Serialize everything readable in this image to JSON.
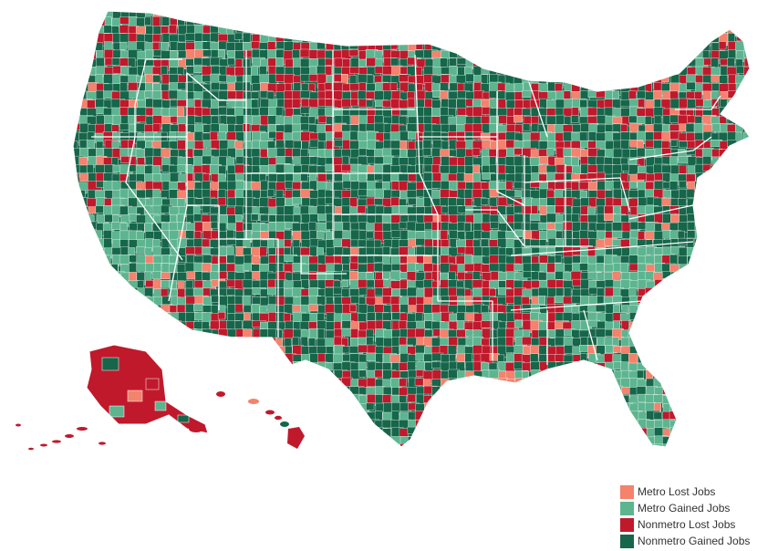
{
  "colors": {
    "metro_lost": "#f4826c",
    "metro_gained": "#5db590",
    "nonmetro_lost": "#c0192b",
    "nonmetro_gained": "#16664a",
    "border": "#ffffff"
  },
  "map": {
    "regions": [
      "contiguous-us",
      "alaska",
      "hawaii"
    ],
    "unit": "county"
  },
  "legend": {
    "items": [
      {
        "key": "metro_lost",
        "label": "Metro Lost Jobs"
      },
      {
        "key": "metro_gained",
        "label": "Metro Gained Jobs"
      },
      {
        "key": "nonmetro_lost",
        "label": "Nonmetro Lost Jobs"
      },
      {
        "key": "nonmetro_gained",
        "label": "Nonmetro Gained Jobs"
      }
    ]
  }
}
